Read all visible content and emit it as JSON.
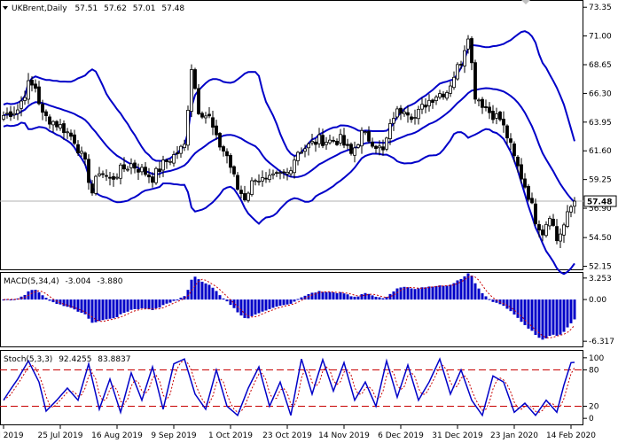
{
  "colors": {
    "background": "#ffffff",
    "frame": "#000000",
    "candle_body": "#000000",
    "bands": "#0000c8",
    "macd_hist": "#0000c8",
    "macd_signal": "#c80000",
    "stoch_main": "#0000c8",
    "stoch_signal": "#c80000",
    "stoch_levels": "#c80000",
    "current_price_line": "#b0b0b0",
    "price_tag_bg": "#ffffff"
  },
  "chart_data": [
    {
      "type": "candlestick",
      "title": "UKBrent,Daily",
      "ohlc_readout": [
        "57.51",
        "57.62",
        "57.01",
        "57.48"
      ],
      "current_price": 57.48,
      "current_price_label": "57.48",
      "ylim": [
        51.9,
        73.8
      ],
      "y_ticks": [
        73.35,
        71.0,
        68.65,
        66.3,
        63.95,
        61.6,
        59.25,
        56.9,
        54.5,
        52.15
      ],
      "y_tick_labels": [
        "73.35",
        "71.00",
        "68.65",
        "66.30",
        "63.95",
        "61.60",
        "59.25",
        "56.90",
        "54.50",
        "52.15"
      ],
      "x_labels": [
        "3 Jul 2019",
        "25 Jul 2019",
        "16 Aug 2019",
        "9 Sep 2019",
        "1 Oct 2019",
        "23 Oct 2019",
        "14 Nov 2019",
        "6 Dec 2019",
        "31 Dec 2019",
        "23 Jan 2020",
        "14 Feb 2020"
      ],
      "x_label_bar_index": [
        0,
        16,
        32,
        48,
        64,
        80,
        96,
        112,
        128,
        144,
        160
      ],
      "bar_count": 162,
      "close_anchors": [
        [
          0,
          64.5
        ],
        [
          4,
          65.0
        ],
        [
          7,
          67.0
        ],
        [
          9,
          66.8
        ],
        [
          11,
          64.5
        ],
        [
          14,
          64.0
        ],
        [
          17,
          63.4
        ],
        [
          20,
          62.5
        ],
        [
          23,
          60.5
        ],
        [
          25,
          58.2
        ],
        [
          27,
          60.0
        ],
        [
          30,
          59.2
        ],
        [
          33,
          60.0
        ],
        [
          36,
          60.5
        ],
        [
          39,
          60.0
        ],
        [
          42,
          59.4
        ],
        [
          45,
          60.5
        ],
        [
          48,
          61.2
        ],
        [
          51,
          62.0
        ],
        [
          53,
          68.5
        ],
        [
          55,
          65.0
        ],
        [
          58,
          64.3
        ],
        [
          60,
          62.5
        ],
        [
          63,
          61.2
        ],
        [
          66,
          58.5
        ],
        [
          68,
          57.8
        ],
        [
          71,
          59.5
        ],
        [
          74,
          59.0
        ],
        [
          77,
          59.5
        ],
        [
          80,
          59.8
        ],
        [
          83,
          61.6
        ],
        [
          86,
          62.0
        ],
        [
          89,
          62.5
        ],
        [
          92,
          62.4
        ],
        [
          95,
          62.5
        ],
        [
          98,
          61.3
        ],
        [
          101,
          63.0
        ],
        [
          104,
          62.4
        ],
        [
          107,
          61.5
        ],
        [
          110,
          64.5
        ],
        [
          113,
          65.2
        ],
        [
          116,
          64.3
        ],
        [
          119,
          65.5
        ],
        [
          122,
          66.2
        ],
        [
          125,
          66.5
        ],
        [
          127,
          67.8
        ],
        [
          129,
          69.0
        ],
        [
          131,
          71.2
        ],
        [
          133,
          66.2
        ],
        [
          135,
          65.5
        ],
        [
          137,
          64.8
        ],
        [
          140,
          64.2
        ],
        [
          142,
          62.8
        ],
        [
          144,
          61.0
        ],
        [
          146,
          59.5
        ],
        [
          148,
          58.0
        ],
        [
          150,
          56.0
        ],
        [
          152,
          55.0
        ],
        [
          154,
          56.5
        ],
        [
          156,
          54.3
        ],
        [
          158,
          55.5
        ],
        [
          160,
          57.0
        ],
        [
          161,
          57.48
        ]
      ]
    },
    {
      "type": "histogram",
      "title": "MACD(5,34,4)",
      "values_readout": [
        "-3.004",
        "-3.880"
      ],
      "macd": -3.004,
      "signal": -3.88,
      "ylim": [
        -7.1,
        3.9
      ],
      "y_ticks": [
        3.253,
        0.0,
        -6.317
      ],
      "y_tick_labels": [
        "3.253",
        "0.00",
        "-6.317"
      ]
    },
    {
      "type": "line",
      "title": "Stoch(5,3,3)",
      "values_readout": [
        "92.4255",
        "83.8837"
      ],
      "main": 92.4255,
      "signal": 83.8837,
      "ylim": [
        -10,
        110
      ],
      "levels": [
        80,
        20
      ],
      "y_ticks": [
        100,
        80,
        20,
        0
      ],
      "y_tick_labels": [
        "100",
        "80",
        "20",
        "0"
      ],
      "main_anchors": [
        [
          0,
          30
        ],
        [
          2,
          48
        ],
        [
          4,
          65
        ],
        [
          7,
          95
        ],
        [
          10,
          60
        ],
        [
          12,
          12
        ],
        [
          15,
          30
        ],
        [
          18,
          50
        ],
        [
          21,
          30
        ],
        [
          24,
          90
        ],
        [
          27,
          15
        ],
        [
          30,
          65
        ],
        [
          33,
          10
        ],
        [
          36,
          75
        ],
        [
          39,
          30
        ],
        [
          42,
          85
        ],
        [
          45,
          15
        ],
        [
          48,
          90
        ],
        [
          51,
          98
        ],
        [
          54,
          40
        ],
        [
          57,
          15
        ],
        [
          60,
          80
        ],
        [
          63,
          20
        ],
        [
          66,
          5
        ],
        [
          69,
          50
        ],
        [
          72,
          85
        ],
        [
          75,
          20
        ],
        [
          78,
          60
        ],
        [
          81,
          5
        ],
        [
          84,
          98
        ],
        [
          87,
          40
        ],
        [
          90,
          97
        ],
        [
          93,
          45
        ],
        [
          96,
          92
        ],
        [
          99,
          30
        ],
        [
          102,
          60
        ],
        [
          105,
          20
        ],
        [
          108,
          95
        ],
        [
          111,
          35
        ],
        [
          114,
          88
        ],
        [
          117,
          30
        ],
        [
          120,
          60
        ],
        [
          123,
          98
        ],
        [
          126,
          40
        ],
        [
          129,
          80
        ],
        [
          132,
          30
        ],
        [
          135,
          5
        ],
        [
          138,
          70
        ],
        [
          141,
          60
        ],
        [
          144,
          10
        ],
        [
          147,
          25
        ],
        [
          150,
          5
        ],
        [
          153,
          30
        ],
        [
          156,
          10
        ],
        [
          158,
          55
        ],
        [
          160,
          92
        ],
        [
          161,
          92.4
        ]
      ]
    }
  ]
}
